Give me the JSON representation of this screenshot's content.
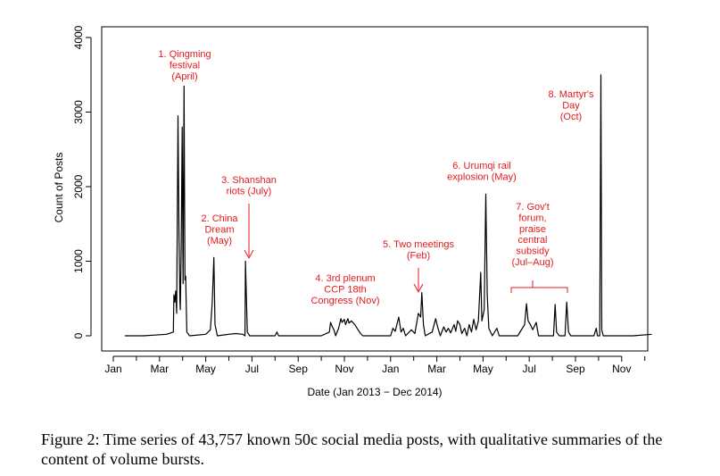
{
  "chart_data": {
    "type": "line",
    "title": "",
    "xlabel": "Date (Jan 2013 − Dec 2014)",
    "ylabel": "Count of Posts",
    "ylim": [
      0,
      4200
    ],
    "xlim": [
      0,
      23.8
    ],
    "yticks": [
      0,
      1000,
      2000,
      3000,
      4000
    ],
    "xticks": [
      {
        "pos": 0,
        "label": "Jan"
      },
      {
        "pos": 2,
        "label": "Mar"
      },
      {
        "pos": 4,
        "label": "May"
      },
      {
        "pos": 6,
        "label": "Jul"
      },
      {
        "pos": 8,
        "label": "Sep"
      },
      {
        "pos": 10,
        "label": "Nov"
      },
      {
        "pos": 12,
        "label": "Jan"
      },
      {
        "pos": 14,
        "label": "Mar"
      },
      {
        "pos": 16,
        "label": "May"
      },
      {
        "pos": 18,
        "label": "Jul"
      },
      {
        "pos": 20,
        "label": "Sep"
      },
      {
        "pos": 22,
        "label": "Nov"
      }
    ],
    "minor_ticks": [
      1,
      3,
      5,
      7,
      9,
      11,
      13,
      15,
      17,
      19,
      21,
      23
    ],
    "series": [
      {
        "name": "Count of Posts",
        "points": [
          [
            0.5,
            0
          ],
          [
            1.3,
            0
          ],
          [
            1.8,
            10
          ],
          [
            2.3,
            20
          ],
          [
            2.6,
            50
          ],
          [
            2.62,
            550
          ],
          [
            2.66,
            450
          ],
          [
            2.7,
            600
          ],
          [
            2.74,
            300
          ],
          [
            2.8,
            2950
          ],
          [
            2.84,
            1400
          ],
          [
            2.88,
            500
          ],
          [
            2.9,
            350
          ],
          [
            2.94,
            1200
          ],
          [
            2.98,
            2800
          ],
          [
            3.02,
            700
          ],
          [
            3.06,
            3350
          ],
          [
            3.1,
            750
          ],
          [
            3.13,
            800
          ],
          [
            3.18,
            50
          ],
          [
            3.3,
            0
          ],
          [
            4.0,
            20
          ],
          [
            4.2,
            80
          ],
          [
            4.28,
            450
          ],
          [
            4.35,
            1050
          ],
          [
            4.4,
            150
          ],
          [
            4.5,
            0
          ],
          [
            5.0,
            20
          ],
          [
            5.3,
            30
          ],
          [
            5.6,
            20
          ],
          [
            5.7,
            0
          ],
          [
            5.72,
            1000
          ],
          [
            5.76,
            500
          ],
          [
            5.8,
            50
          ],
          [
            5.9,
            0
          ],
          [
            7.0,
            0
          ],
          [
            7.08,
            50
          ],
          [
            7.15,
            0
          ],
          [
            9.0,
            0
          ],
          [
            9.35,
            50
          ],
          [
            9.4,
            180
          ],
          [
            9.48,
            120
          ],
          [
            9.55,
            80
          ],
          [
            9.62,
            0
          ],
          [
            9.75,
            100
          ],
          [
            9.85,
            230
          ],
          [
            9.9,
            180
          ],
          [
            10.0,
            220
          ],
          [
            10.05,
            150
          ],
          [
            10.15,
            230
          ],
          [
            10.2,
            170
          ],
          [
            10.3,
            200
          ],
          [
            10.45,
            150
          ],
          [
            10.55,
            100
          ],
          [
            10.7,
            30
          ],
          [
            10.8,
            0
          ],
          [
            12.0,
            0
          ],
          [
            12.1,
            100
          ],
          [
            12.2,
            60
          ],
          [
            12.35,
            250
          ],
          [
            12.45,
            50
          ],
          [
            12.55,
            100
          ],
          [
            12.65,
            0
          ],
          [
            12.9,
            80
          ],
          [
            13.05,
            30
          ],
          [
            13.2,
            300
          ],
          [
            13.3,
            250
          ],
          [
            13.35,
            580
          ],
          [
            13.42,
            150
          ],
          [
            13.5,
            0
          ],
          [
            13.8,
            50
          ],
          [
            13.95,
            230
          ],
          [
            14.05,
            100
          ],
          [
            14.15,
            0
          ],
          [
            14.3,
            120
          ],
          [
            14.4,
            50
          ],
          [
            14.5,
            100
          ],
          [
            14.6,
            40
          ],
          [
            14.75,
            150
          ],
          [
            14.82,
            60
          ],
          [
            14.9,
            200
          ],
          [
            15.0,
            150
          ],
          [
            15.08,
            30
          ],
          [
            15.2,
            100
          ],
          [
            15.3,
            0
          ],
          [
            15.4,
            150
          ],
          [
            15.5,
            50
          ],
          [
            15.6,
            220
          ],
          [
            15.7,
            80
          ],
          [
            15.8,
            200
          ],
          [
            15.9,
            850
          ],
          [
            15.95,
            200
          ],
          [
            16.05,
            350
          ],
          [
            16.12,
            1900
          ],
          [
            16.18,
            550
          ],
          [
            16.25,
            100
          ],
          [
            16.4,
            0
          ],
          [
            16.6,
            100
          ],
          [
            16.7,
            0
          ],
          [
            17.5,
            0
          ],
          [
            17.8,
            150
          ],
          [
            17.88,
            430
          ],
          [
            17.95,
            200
          ],
          [
            18.05,
            150
          ],
          [
            18.15,
            80
          ],
          [
            18.3,
            180
          ],
          [
            18.4,
            0
          ],
          [
            18.8,
            0
          ],
          [
            19.05,
            0
          ],
          [
            19.12,
            420
          ],
          [
            19.18,
            50
          ],
          [
            19.3,
            0
          ],
          [
            19.55,
            0
          ],
          [
            19.62,
            450
          ],
          [
            19.7,
            50
          ],
          [
            19.8,
            0
          ],
          [
            20.8,
            0
          ],
          [
            20.9,
            100
          ],
          [
            20.95,
            0
          ],
          [
            21.05,
            0
          ],
          [
            21.1,
            3500
          ],
          [
            21.14,
            80
          ],
          [
            21.2,
            0
          ],
          [
            22.5,
            0
          ],
          [
            23.3,
            20
          ]
        ]
      }
    ],
    "annotations": [
      {
        "id": "qingming",
        "lines": [
          "1. Qingming",
          "festival",
          "(April)"
        ]
      },
      {
        "id": "china-dream",
        "lines": [
          "2. China",
          "Dream",
          "(May)"
        ]
      },
      {
        "id": "shanshan",
        "lines": [
          "3. Shanshan",
          "riots (July)"
        ]
      },
      {
        "id": "third-plenum",
        "lines": [
          "4. 3rd plenum",
          "CCP 18th",
          "Congress (Nov)"
        ]
      },
      {
        "id": "two-meetings",
        "lines": [
          "5. Two meetings",
          "(Feb)"
        ]
      },
      {
        "id": "urumqi",
        "lines": [
          "6. Urumqi rail",
          "explosion (May)"
        ]
      },
      {
        "id": "govt-forum",
        "lines": [
          "7. Gov't",
          "forum,",
          "praise",
          "central",
          "subsidy",
          "(Jul–Aug)"
        ]
      },
      {
        "id": "martyrs-day",
        "lines": [
          "8. Martyr's",
          "Day",
          "(Oct)"
        ]
      }
    ],
    "annotation_color": "#e31a1c",
    "line_color": "#000000"
  },
  "caption": "Figure 2: Time series of 43,757 known 50c social media posts, with qualitative summaries of the content of volume bursts."
}
